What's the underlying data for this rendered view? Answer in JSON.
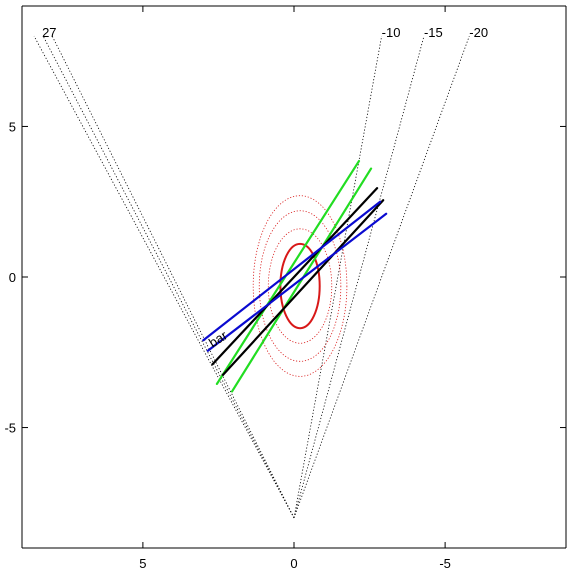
{
  "chart_data": {
    "type": "line",
    "title": "",
    "xlabel": "",
    "ylabel": "",
    "xlim": [
      9,
      -9
    ],
    "ylim": [
      -9,
      9
    ],
    "x_ticks": [
      {
        "value": 5,
        "label": "5"
      },
      {
        "value": 0,
        "label": "0"
      },
      {
        "value": -5,
        "label": "-5"
      }
    ],
    "y_ticks": [
      {
        "value": 5,
        "label": "5"
      },
      {
        "value": 0,
        "label": "0"
      },
      {
        "value": -5,
        "label": "-5"
      }
    ],
    "grid": false,
    "rays": [
      {
        "label": "27",
        "x": [
          0.0,
          8.6
        ],
        "y": [
          -8.0,
          8.0
        ],
        "label_anchor": "end"
      },
      {
        "label": "",
        "x": [
          0.0,
          8.3
        ],
        "y": [
          -8.0,
          8.0
        ],
        "label_anchor": "end"
      },
      {
        "label": "",
        "x": [
          0.0,
          8.0
        ],
        "y": [
          -8.0,
          8.0
        ],
        "label_anchor": "end"
      },
      {
        "label": "-10",
        "x": [
          0.0,
          -2.9
        ],
        "y": [
          -8.0,
          8.0
        ],
        "label_anchor": "start"
      },
      {
        "label": "-15",
        "x": [
          0.0,
          -4.3
        ],
        "y": [
          -8.0,
          8.0
        ],
        "label_anchor": "start"
      },
      {
        "label": "-20",
        "x": [
          0.0,
          -5.8
        ],
        "y": [
          -8.0,
          8.0
        ],
        "label_anchor": "start"
      }
    ],
    "contours": [
      {
        "cx": -0.2,
        "cy": -0.3,
        "rx": 0.65,
        "ry": 1.4,
        "style": "solid"
      },
      {
        "cx": -0.2,
        "cy": -0.3,
        "rx": 1.05,
        "ry": 1.9,
        "style": "dotted"
      },
      {
        "cx": -0.2,
        "cy": -0.3,
        "rx": 1.35,
        "ry": 2.5,
        "style": "dotted"
      },
      {
        "cx": -0.2,
        "cy": -0.3,
        "rx": 1.55,
        "ry": 3.0,
        "style": "dotted"
      }
    ],
    "segments": [
      {
        "color": "#22dd22",
        "x": [
          2.55,
          -2.15
        ],
        "y": [
          -3.55,
          3.85
        ]
      },
      {
        "color": "#22dd22",
        "x": [
          2.05,
          -2.55
        ],
        "y": [
          -3.8,
          3.6
        ]
      },
      {
        "color": "#000000",
        "x": [
          2.7,
          -2.75
        ],
        "y": [
          -2.9,
          2.95
        ]
      },
      {
        "color": "#000000",
        "x": [
          2.35,
          -2.95
        ],
        "y": [
          -3.25,
          2.55
        ]
      },
      {
        "color": "#0a0ad0",
        "x": [
          3.0,
          -2.85
        ],
        "y": [
          -2.1,
          2.5
        ]
      },
      {
        "color": "#0a0ad0",
        "x": [
          2.85,
          -3.05
        ],
        "y": [
          -2.45,
          2.1
        ]
      }
    ],
    "annotations": [
      {
        "text": "bar",
        "x": 2.7,
        "y": -2.35,
        "rotation": -32
      }
    ]
  }
}
